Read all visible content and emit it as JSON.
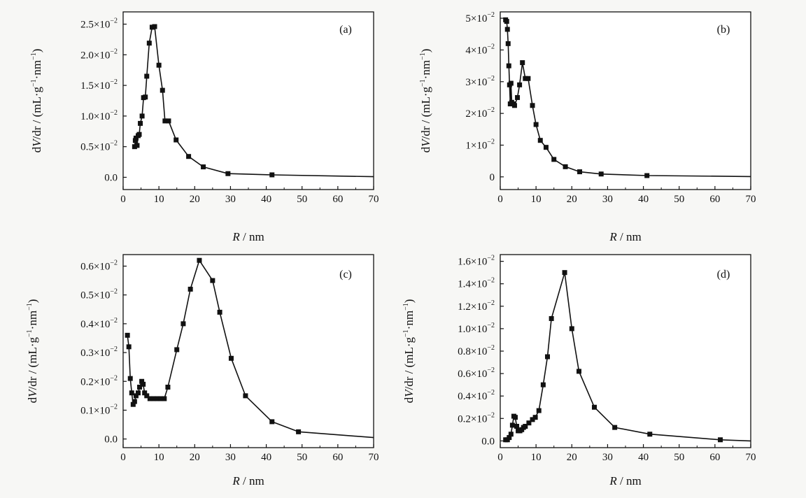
{
  "chart_data": [
    {
      "type": "line",
      "panel_label": "(a)",
      "xlabel": {
        "var": "R",
        "unit": " / nm"
      },
      "ylabel": {
        "var": "V",
        "rest": "/dr / (mL·g",
        "mid": "·nm",
        "end": ")",
        "sup": "−1"
      },
      "xlim": [
        0,
        70
      ],
      "xticks": [
        0,
        10,
        20,
        30,
        40,
        50,
        60,
        70
      ],
      "ylim": [
        -0.002,
        0.027
      ],
      "yticks": [
        {
          "v": 0,
          "label": "0.0",
          "exp": ""
        },
        {
          "v": 0.005,
          "label": "0.5×10",
          "exp": "−2"
        },
        {
          "v": 0.01,
          "label": "1.0×10",
          "exp": "−2"
        },
        {
          "v": 0.015,
          "label": "1.5×10",
          "exp": "−2"
        },
        {
          "v": 0.02,
          "label": "2.0×10",
          "exp": "−2"
        },
        {
          "v": 0.025,
          "label": "2.5×10",
          "exp": "−2"
        }
      ],
      "x": [
        3.2,
        3.4,
        3.6,
        3.9,
        4.2,
        4.5,
        4.8,
        5.3,
        5.7,
        6.2,
        6.6,
        7.3,
        8.1,
        8.8,
        10.0,
        11.0,
        11.7,
        12.7,
        14.8,
        18.3,
        22.4,
        29.3,
        41.6,
        70.0
      ],
      "y": [
        0.005,
        0.006,
        0.0064,
        0.0052,
        0.0068,
        0.007,
        0.0088,
        0.01,
        0.013,
        0.0131,
        0.0165,
        0.0219,
        0.0245,
        0.0246,
        0.0183,
        0.0142,
        0.0092,
        0.0092,
        0.0061,
        0.0034,
        0.0017,
        0.0006,
        0.0004,
        0.0001
      ],
      "markers": true
    },
    {
      "type": "line",
      "panel_label": "(b)",
      "xlabel": {
        "var": "R",
        "unit": " / nm"
      },
      "ylabel": {
        "var": "V",
        "rest": "/dr / (mL·g",
        "mid": "·nm",
        "end": ")",
        "sup": "−1"
      },
      "xlim": [
        0,
        70
      ],
      "xticks": [
        0,
        10,
        20,
        30,
        40,
        50,
        60,
        70
      ],
      "ylim": [
        -0.004,
        0.052
      ],
      "yticks": [
        {
          "v": 0,
          "label": "0",
          "exp": ""
        },
        {
          "v": 0.01,
          "label": "1×10",
          "exp": "−2"
        },
        {
          "v": 0.02,
          "label": "2×10",
          "exp": "−2"
        },
        {
          "v": 0.03,
          "label": "3×10",
          "exp": "−2"
        },
        {
          "v": 0.04,
          "label": "4×10",
          "exp": "−2"
        },
        {
          "v": 0.05,
          "label": "5×10",
          "exp": "−2"
        }
      ],
      "x": [
        1.5,
        1.8,
        2.0,
        2.2,
        2.4,
        2.6,
        2.8,
        3.0,
        3.2,
        3.6,
        4.0,
        4.8,
        5.4,
        6.2,
        7.0,
        7.8,
        9.0,
        10.0,
        11.2,
        12.8,
        15.0,
        18.2,
        22.2,
        28.2,
        41.0,
        70.0
      ],
      "y": [
        0.0495,
        0.049,
        0.0465,
        0.042,
        0.035,
        0.029,
        0.023,
        0.0295,
        0.0235,
        0.023,
        0.0225,
        0.025,
        0.029,
        0.036,
        0.031,
        0.031,
        0.0225,
        0.0165,
        0.0115,
        0.0093,
        0.0055,
        0.0032,
        0.0016,
        0.0009,
        0.0004,
        0.0001
      ],
      "markers": true
    },
    {
      "type": "line",
      "panel_label": "(c)",
      "xlabel": {
        "var": "R",
        "unit": " / nm"
      },
      "ylabel": {
        "var": "V",
        "rest": "/dr / (mL·g",
        "mid": "·nm",
        "end": ")",
        "sup": "−1"
      },
      "xlim": [
        0,
        70
      ],
      "xticks": [
        0,
        10,
        20,
        30,
        40,
        50,
        60,
        70
      ],
      "ylim": [
        -0.0003,
        0.0064
      ],
      "yticks": [
        {
          "v": 0,
          "label": "0.0",
          "exp": ""
        },
        {
          "v": 0.001,
          "label": "0.1×10",
          "exp": "−2"
        },
        {
          "v": 0.002,
          "label": "0.2×10",
          "exp": "−2"
        },
        {
          "v": 0.003,
          "label": "0.3×10",
          "exp": "−2"
        },
        {
          "v": 0.004,
          "label": "0.4×10",
          "exp": "−2"
        },
        {
          "v": 0.005,
          "label": "0.5×10",
          "exp": "−2"
        },
        {
          "v": 0.006,
          "label": "0.6×10",
          "exp": "−2"
        }
      ],
      "x": [
        1.2,
        1.6,
        2.0,
        2.4,
        2.8,
        3.2,
        3.6,
        4.2,
        4.6,
        5.2,
        5.6,
        6.0,
        6.6,
        7.5,
        8.5,
        9.5,
        10.5,
        11.5,
        12.5,
        15.0,
        16.8,
        18.8,
        21.3,
        25.0,
        27.0,
        30.2,
        34.2,
        41.6,
        49.0,
        70.0
      ],
      "y": [
        0.0036,
        0.0032,
        0.0021,
        0.0016,
        0.0012,
        0.0013,
        0.0015,
        0.0016,
        0.0018,
        0.002,
        0.0019,
        0.0016,
        0.0015,
        0.0014,
        0.0014,
        0.0014,
        0.0014,
        0.0014,
        0.0018,
        0.0031,
        0.004,
        0.0052,
        0.0062,
        0.0055,
        0.0044,
        0.0028,
        0.0015,
        0.0006,
        0.00025,
        5e-05
      ],
      "markers": true
    },
    {
      "type": "line",
      "panel_label": "(d)",
      "xlabel": {
        "var": "R",
        "unit": " / nm"
      },
      "ylabel": {
        "var": "V",
        "rest": "/dr / (mL·g",
        "mid": "·nm",
        "end": ")",
        "sup": "−1"
      },
      "xlim": [
        0,
        70
      ],
      "xticks": [
        0,
        10,
        20,
        30,
        40,
        50,
        60,
        70
      ],
      "ylim": [
        -0.0006,
        0.0166
      ],
      "yticks": [
        {
          "v": 0,
          "label": "0.0",
          "exp": ""
        },
        {
          "v": 0.002,
          "label": "0.2×10",
          "exp": "−2"
        },
        {
          "v": 0.004,
          "label": "0.4×10",
          "exp": "−2"
        },
        {
          "v": 0.006,
          "label": "0.6×10",
          "exp": "−2"
        },
        {
          "v": 0.008,
          "label": "0.8×10",
          "exp": "−2"
        },
        {
          "v": 0.01,
          "label": "1.0×10",
          "exp": "−2"
        },
        {
          "v": 0.012,
          "label": "1.2×10",
          "exp": "−2"
        },
        {
          "v": 0.014,
          "label": "1.4×10",
          "exp": "−2"
        },
        {
          "v": 0.016,
          "label": "1.6×10",
          "exp": "−2"
        }
      ],
      "x": [
        1.5,
        2.0,
        2.5,
        3.0,
        3.4,
        3.8,
        4.2,
        4.6,
        5.0,
        5.5,
        6.0,
        6.5,
        7.0,
        8.0,
        9.0,
        9.8,
        10.8,
        12.0,
        13.2,
        14.3,
        18.0,
        20.0,
        22.0,
        26.3,
        32.0,
        41.8,
        61.5,
        70.0
      ],
      "y": [
        0.0001,
        0.0001,
        0.0003,
        0.0006,
        0.0014,
        0.0022,
        0.0021,
        0.0013,
        0.0009,
        0.0009,
        0.001,
        0.0012,
        0.0013,
        0.0016,
        0.0019,
        0.0021,
        0.0027,
        0.005,
        0.0075,
        0.0109,
        0.015,
        0.01,
        0.0062,
        0.003,
        0.0012,
        0.0006,
        0.0001,
        0.0
      ],
      "markers": true
    }
  ]
}
